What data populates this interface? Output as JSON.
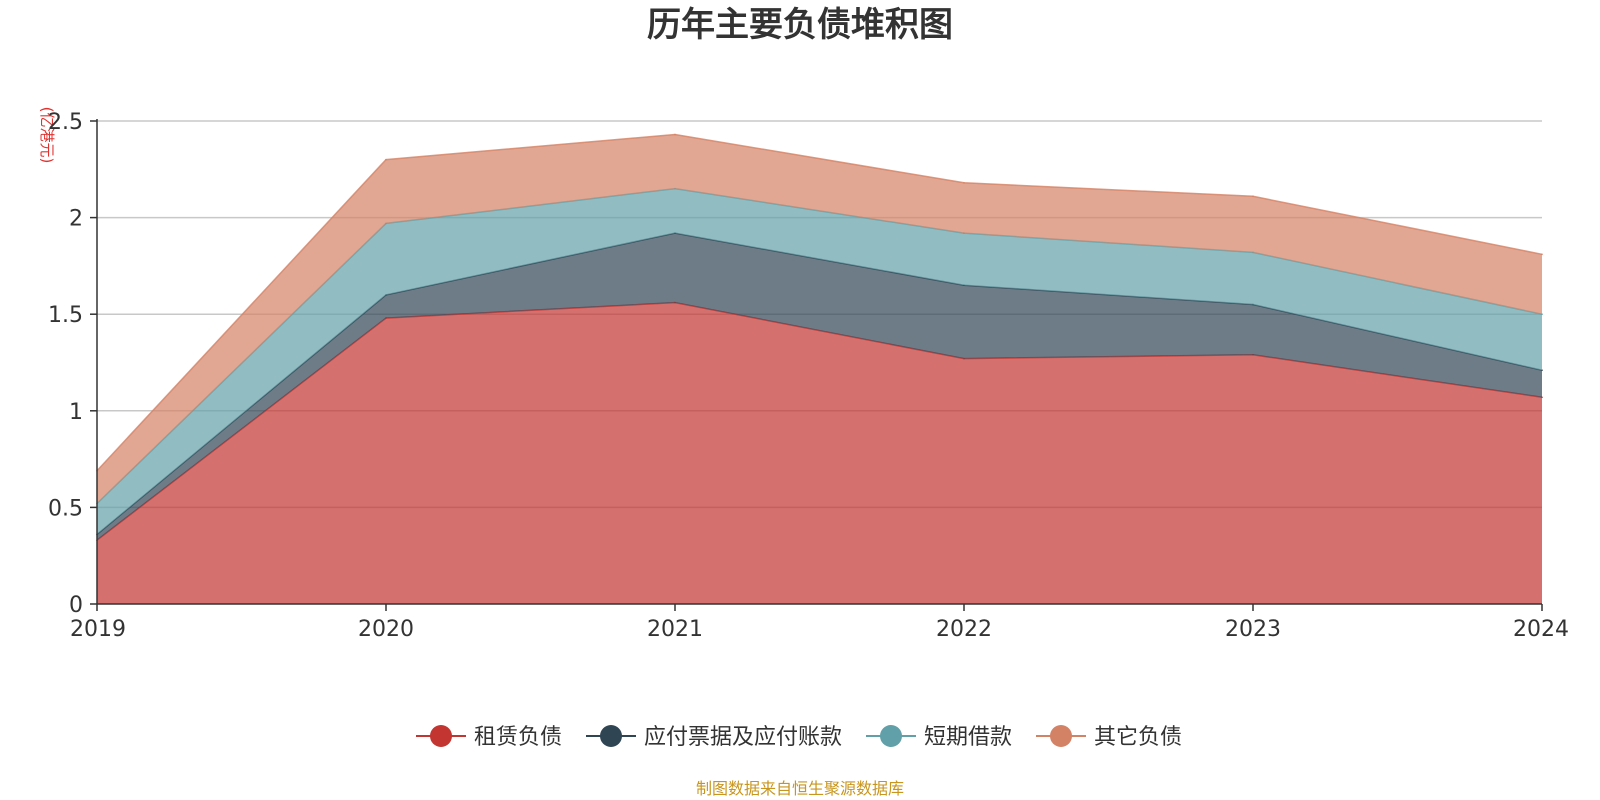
{
  "chart_data": {
    "type": "area",
    "stacked": true,
    "title": "历年主要负债堆积图",
    "unit_label": "(亿港元)",
    "x": [
      "2019",
      "2020",
      "2021",
      "2022",
      "2023",
      "2024"
    ],
    "ylim": [
      0,
      2.5
    ],
    "yticks": [
      0,
      0.5,
      1,
      1.5,
      2,
      2.5
    ],
    "ytick_labels": [
      "0",
      "0.5",
      "1",
      "1.5",
      "2",
      "2.5"
    ],
    "grid": true,
    "legend_position": "bottom",
    "series": [
      {
        "name": "租赁负债",
        "color": "#c23531",
        "values": [
          0.33,
          1.48,
          1.56,
          1.27,
          1.29,
          1.07
        ]
      },
      {
        "name": "应付票据及应付账款",
        "color": "#2f4554",
        "values": [
          0.03,
          0.12,
          0.36,
          0.38,
          0.26,
          0.14
        ]
      },
      {
        "name": "短期借款",
        "color": "#61a0a8",
        "values": [
          0.16,
          0.37,
          0.23,
          0.27,
          0.27,
          0.29
        ]
      },
      {
        "name": "其它负债",
        "color": "#d48265",
        "values": [
          0.17,
          0.33,
          0.28,
          0.26,
          0.29,
          0.31
        ]
      }
    ]
  },
  "source_text": "制图数据来自恒生聚源数据库"
}
